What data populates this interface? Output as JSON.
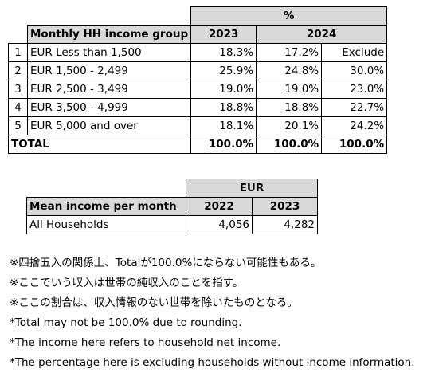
{
  "table1": {
    "pct_header": "%",
    "group_header": "Monthly HH income group",
    "year_a": "2023",
    "year_b": "2024",
    "rows": [
      {
        "idx": "1",
        "label": "EUR Less than 1,500",
        "a": "18.3%",
        "b": "17.2%",
        "c": "Exclude"
      },
      {
        "idx": "2",
        "label": "EUR 1,500 - 2,499",
        "a": "25.9%",
        "b": "24.8%",
        "c": "30.0%"
      },
      {
        "idx": "3",
        "label": "EUR 2,500 - 3,499",
        "a": "19.0%",
        "b": "19.0%",
        "c": "23.0%"
      },
      {
        "idx": "4",
        "label": "EUR 3,500 - 4,999",
        "a": "18.8%",
        "b": "18.8%",
        "c": "22.7%"
      },
      {
        "idx": "5",
        "label": "EUR 5,000 and over",
        "a": "18.1%",
        "b": "20.1%",
        "c": "24.2%"
      }
    ],
    "total": {
      "label": "TOTAL",
      "a": "100.0%",
      "b": "100.0%",
      "c": "100.0%"
    }
  },
  "table2": {
    "currency_header": "EUR",
    "label_header": "Mean income per month",
    "year_a": "2022",
    "year_b": "2023",
    "row": {
      "label": "All Households",
      "a": "4,056",
      "b": "4,282"
    }
  },
  "notes": [
    "※四捨五入の関係上、Totalが100.0%にならない可能性もある。",
    "※ここでいう収入は世帯の純収入のことを指す。",
    "※ここの割合は、収入情報のない世帯を除いたものとなる。",
    "*Total may not be 100.0% due to rounding.",
    "*The income here refers to household net income.",
    "*The percentage here is excluding households without income information."
  ]
}
